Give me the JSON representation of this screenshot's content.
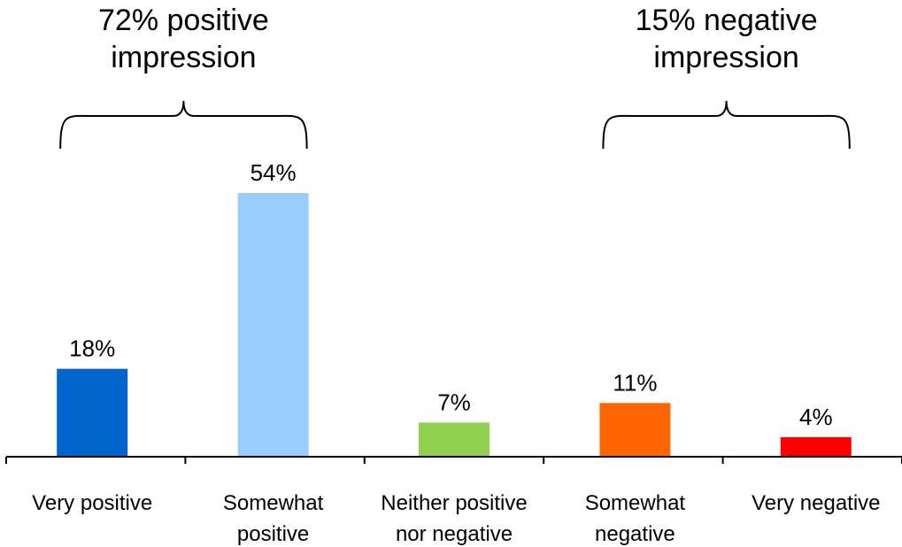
{
  "chart_data": {
    "type": "bar",
    "categories": [
      [
        "Very positive"
      ],
      [
        "Somewhat",
        "positive"
      ],
      [
        "Neither positive",
        "nor negative"
      ],
      [
        "Somewhat",
        "negative"
      ],
      [
        "Very negative"
      ]
    ],
    "values": [
      18,
      54,
      7,
      11,
      4
    ],
    "data_labels": [
      "18%",
      "54%",
      "7%",
      "11%",
      "4%"
    ],
    "colors": [
      "#0066CC",
      "#99CCFF",
      "#92D050",
      "#FF6600",
      "#FF0000"
    ],
    "ylim": [
      0,
      54
    ],
    "grid": false,
    "annotations": [
      {
        "lines": [
          "72% positive",
          "impression"
        ],
        "spans_categories": [
          0,
          1
        ]
      },
      {
        "lines": [
          "15% negative",
          "impression"
        ],
        "spans_categories": [
          3,
          4
        ]
      }
    ]
  }
}
